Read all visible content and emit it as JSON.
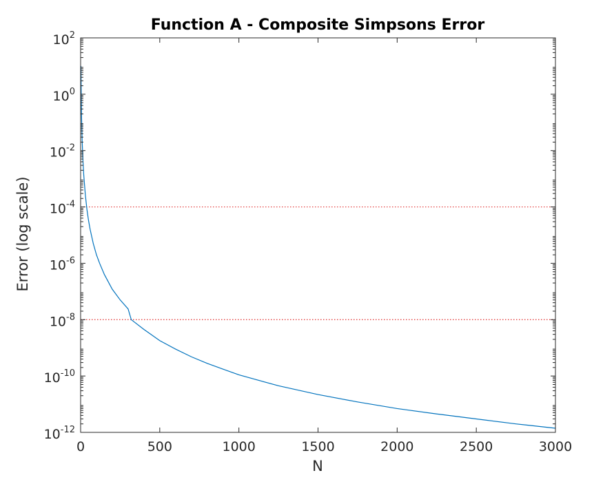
{
  "chart_data": {
    "type": "line",
    "title": "Function A - Composite Simpsons Error",
    "xlabel": "N",
    "ylabel": "Error (log scale)",
    "xlim": [
      0,
      3000
    ],
    "ylim": [
      1e-12,
      100
    ],
    "yscale": "log",
    "grid": false,
    "x_ticks": [
      0,
      500,
      1000,
      1500,
      2000,
      2500,
      3000
    ],
    "y_ticks": [
      {
        "base": "10",
        "exp": "2"
      },
      {
        "base": "10",
        "exp": "0"
      },
      {
        "base": "10",
        "exp": "-2"
      },
      {
        "base": "10",
        "exp": "-4"
      },
      {
        "base": "10",
        "exp": "-6"
      },
      {
        "base": "10",
        "exp": "-8"
      },
      {
        "base": "10",
        "exp": "-10"
      },
      {
        "base": "10",
        "exp": "-12"
      }
    ],
    "series": [
      {
        "color": "#0072bd",
        "x": [
          2,
          4,
          6,
          8,
          10,
          15,
          20,
          30,
          40,
          50,
          60,
          80,
          100,
          120,
          150,
          200,
          250,
          300,
          320,
          400,
          500,
          600,
          700,
          800,
          900,
          1000,
          1250,
          1500,
          1750,
          2000,
          2250,
          2500,
          2750,
          3000
        ],
        "y": [
          10,
          0.8,
          0.16,
          0.05,
          0.02,
          0.004,
          0.0013,
          0.00026,
          8e-05,
          3.3e-05,
          1.6e-05,
          5e-06,
          2e-06,
          1e-06,
          4e-07,
          1.2e-07,
          5e-08,
          2.4e-08,
          1e-08,
          4.5e-09,
          1.8e-09,
          9e-10,
          4.8e-10,
          2.8e-10,
          1.75e-10,
          1.1e-10,
          4.5e-11,
          2.2e-11,
          1.2e-11,
          7e-12,
          4.5e-12,
          3e-12,
          2e-12,
          1.4e-12
        ]
      }
    ],
    "reference_lines": [
      {
        "y": 0.0001,
        "color": "#e03030",
        "style": "dotted"
      },
      {
        "y": 1e-08,
        "color": "#e03030",
        "style": "dotted"
      }
    ]
  }
}
